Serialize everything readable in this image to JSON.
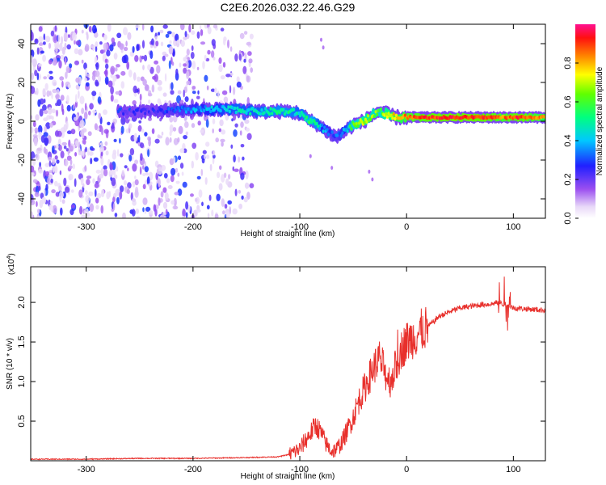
{
  "title": "C2E6.2026.032.22.46.G29",
  "chart_data": [
    {
      "type": "heatmap",
      "name": "spectrogram",
      "xlabel": "Height of straight line (km)",
      "ylabel": "Frequency (Hz)",
      "xlim": [
        -352,
        130
      ],
      "ylim": [
        -50,
        50
      ],
      "xticks": [
        -300,
        -200,
        -100,
        0,
        100
      ],
      "yticks": [
        -40,
        -20,
        0,
        20,
        40
      ],
      "colorbar": {
        "label": "Normalized spectral amplitude",
        "range": [
          0,
          1
        ],
        "ticks": [
          "0.0",
          "0.2",
          "0.4",
          "0.6",
          "0.8"
        ],
        "tick_values": [
          0.0,
          0.2,
          0.4,
          0.6,
          0.8
        ],
        "colormap": "rainbow (white - purple - blue - cyan - green - yellow - red - magenta)"
      },
      "noise_region_km": [
        -352,
        -145
      ],
      "signal_trace": {
        "x": [
          -270,
          -240,
          -200,
          -180,
          -160,
          -140,
          -125,
          -110,
          -100,
          -95,
          -90,
          -85,
          -80,
          -75,
          -70,
          -65,
          -60,
          -55,
          -50,
          -45,
          -40,
          -35,
          -30,
          -25,
          -20,
          -15,
          -10,
          -5,
          0,
          20,
          40,
          60,
          80,
          90,
          100,
          110,
          120,
          130
        ],
        "freq_hz": [
          5,
          5,
          6,
          6,
          6,
          5,
          5,
          5,
          4,
          2,
          0,
          -1,
          -3,
          -5,
          -7,
          -8,
          -6,
          -4,
          -2,
          -1,
          0,
          2,
          4,
          5,
          4,
          3,
          2,
          2,
          2,
          2,
          2,
          2,
          2,
          2,
          2,
          2,
          2,
          2
        ],
        "amplitude": [
          0.25,
          0.25,
          0.35,
          0.4,
          0.45,
          0.45,
          0.5,
          0.5,
          0.45,
          0.5,
          0.55,
          0.5,
          0.4,
          0.35,
          0.3,
          0.3,
          0.35,
          0.45,
          0.6,
          0.65,
          0.7,
          0.7,
          0.65,
          0.6,
          0.7,
          0.75,
          0.8,
          0.8,
          0.85,
          0.9,
          0.92,
          0.92,
          0.9,
          0.85,
          0.9,
          0.9,
          0.85,
          0.8
        ]
      }
    },
    {
      "type": "line",
      "name": "snr",
      "xlabel": "Height of straight line (km)",
      "ylabel": "SNR (10 * v/v)",
      "scale_label": "(x10",
      "scale_exp": "4",
      "xlim": [
        -352,
        130
      ],
      "ylim": [
        0,
        2.45
      ],
      "xticks": [
        -300,
        -200,
        -100,
        0,
        100
      ],
      "yticks": [
        "0.5",
        "1.0",
        "1.5",
        "2.0"
      ],
      "ytick_values": [
        0.5,
        1.0,
        1.5,
        2.0
      ],
      "color": "#e8302c",
      "x": [
        -352,
        -300,
        -250,
        -200,
        -150,
        -120,
        -110,
        -100,
        -95,
        -90,
        -85,
        -80,
        -75,
        -70,
        -65,
        -60,
        -55,
        -50,
        -45,
        -40,
        -35,
        -30,
        -25,
        -20,
        -15,
        -10,
        -5,
        0,
        5,
        10,
        15,
        20,
        25,
        30,
        40,
        50,
        60,
        70,
        80,
        85,
        90,
        95,
        100,
        110,
        120,
        130
      ],
      "y": [
        0.02,
        0.02,
        0.03,
        0.03,
        0.04,
        0.05,
        0.08,
        0.15,
        0.25,
        0.35,
        0.45,
        0.35,
        0.2,
        0.12,
        0.15,
        0.25,
        0.4,
        0.55,
        0.75,
        0.9,
        1.05,
        1.2,
        1.3,
        1.1,
        1.0,
        1.2,
        1.4,
        1.5,
        1.55,
        1.6,
        1.65,
        1.7,
        1.75,
        1.82,
        1.88,
        1.93,
        1.95,
        1.97,
        1.98,
        2.0,
        1.98,
        1.96,
        1.93,
        1.92,
        1.91,
        1.9
      ]
    }
  ]
}
